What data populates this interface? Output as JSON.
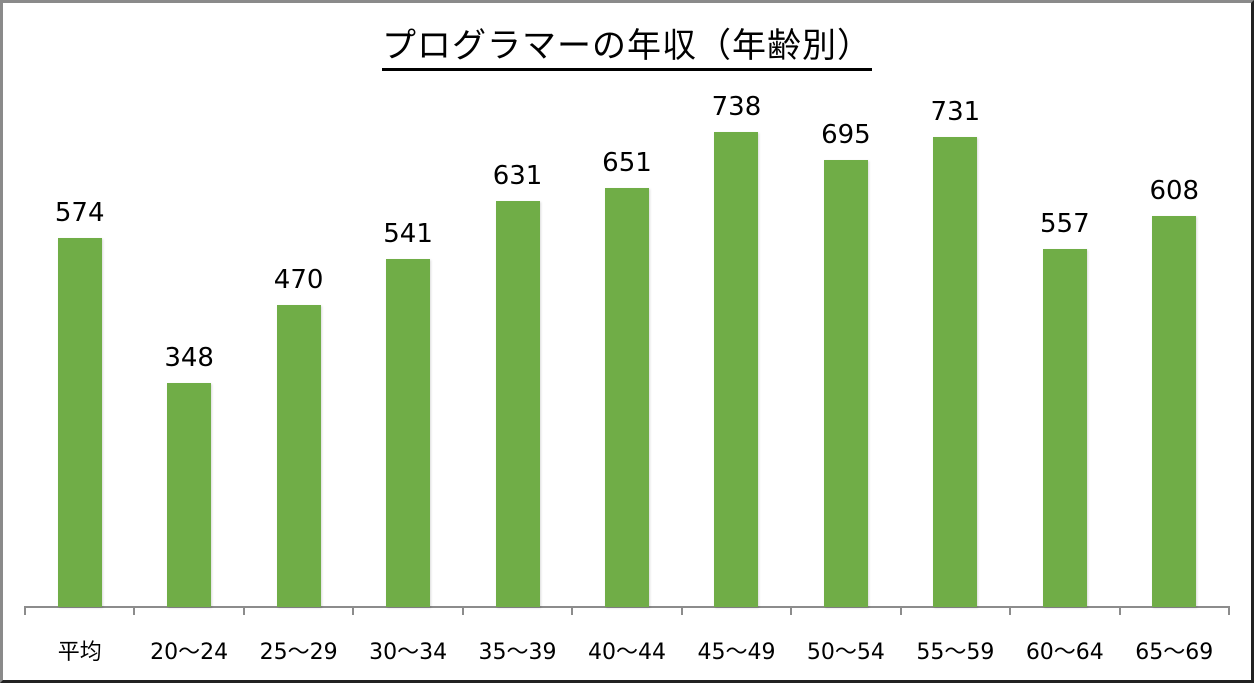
{
  "chart_data": {
    "type": "bar",
    "title": "プログラマーの年収（年齢別）",
    "xlabel": "",
    "ylabel": "",
    "categories": [
      "平均",
      "20〜24",
      "25〜29",
      "30〜34",
      "35〜39",
      "40〜44",
      "45〜49",
      "50〜54",
      "55〜59",
      "60〜64",
      "65〜69"
    ],
    "values": [
      574,
      348,
      470,
      541,
      631,
      651,
      738,
      695,
      731,
      557,
      608
    ],
    "ylim": [
      0,
      800
    ],
    "grid": false,
    "legend": "none",
    "data_labels": true,
    "bar_color": "#70ad47"
  }
}
